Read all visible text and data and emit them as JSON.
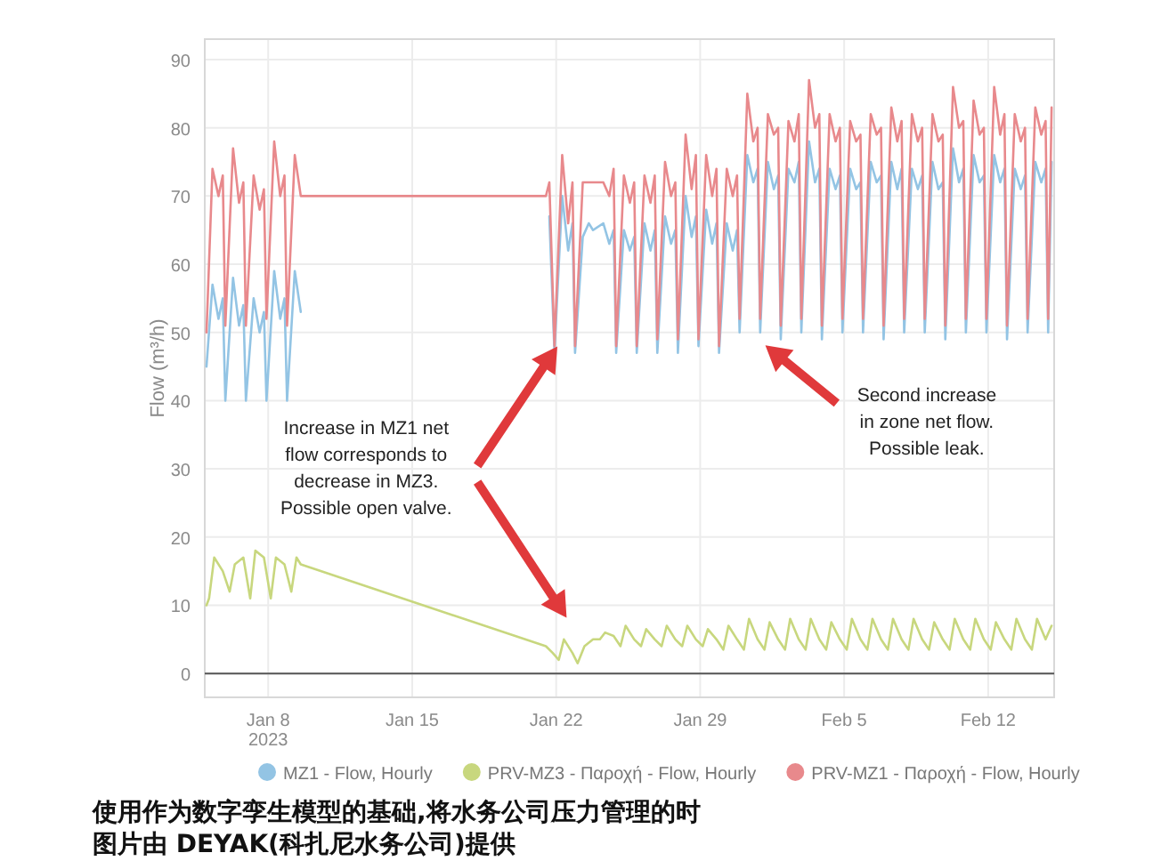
{
  "chart_data": {
    "type": "line",
    "ylabel": "Flow (m³/h)",
    "x": [
      "2023-01-05T00:00",
      "2023-01-05T07:00",
      "2023-01-05T14:00",
      "2023-01-05T19:00",
      "2023-01-05T22:00",
      "2023-01-06T07:00",
      "2023-01-06T14:00",
      "2023-01-06T19:00",
      "2023-01-06T22:00",
      "2023-01-07T07:00",
      "2023-01-07T14:00",
      "2023-01-07T19:00",
      "2023-01-07T22:00",
      "2023-01-08T07:00",
      "2023-01-08T14:00",
      "2023-01-08T19:00",
      "2023-01-08T22:00",
      "2023-01-09T07:00",
      "2023-01-09T14:00",
      "2023-01-21T12:00",
      "2023-01-21T16:00",
      "2023-01-21T22:00",
      "2023-01-22T07:00",
      "2023-01-22T14:00",
      "2023-01-22T19:00",
      "2023-01-22T22:00",
      "2023-01-23T07:00",
      "2023-01-23T14:00",
      "2023-01-23T19:00",
      "2023-01-24T07:00",
      "2023-01-24T14:00",
      "2023-01-24T19:00",
      "2023-01-24T22:00",
      "2023-01-25T07:00",
      "2023-01-25T14:00",
      "2023-01-25T19:00",
      "2023-01-25T22:00",
      "2023-01-26T07:00",
      "2023-01-26T14:00",
      "2023-01-26T19:00",
      "2023-01-26T22:00",
      "2023-01-27T07:00",
      "2023-01-27T14:00",
      "2023-01-27T19:00",
      "2023-01-27T22:00",
      "2023-01-28T07:00",
      "2023-01-28T14:00",
      "2023-01-28T19:00",
      "2023-01-28T22:00",
      "2023-01-29T07:00",
      "2023-01-29T14:00",
      "2023-01-29T19:00",
      "2023-01-29T22:00",
      "2023-01-30T07:00",
      "2023-01-30T14:00",
      "2023-01-30T19:00",
      "2023-01-30T22:00",
      "2023-01-31T07:00",
      "2023-01-31T14:00",
      "2023-01-31T19:00",
      "2023-01-31T22:00",
      "2023-02-01T07:00",
      "2023-02-01T14:00",
      "2023-02-01T19:00",
      "2023-02-01T22:00",
      "2023-02-02T07:00",
      "2023-02-02T14:00",
      "2023-02-02T19:00",
      "2023-02-02T22:00",
      "2023-02-03T07:00",
      "2023-02-03T14:00",
      "2023-02-03T19:00",
      "2023-02-03T22:00",
      "2023-02-04T07:00",
      "2023-02-04T14:00",
      "2023-02-04T19:00",
      "2023-02-04T22:00",
      "2023-02-05T07:00",
      "2023-02-05T14:00",
      "2023-02-05T19:00",
      "2023-02-05T22:00",
      "2023-02-06T07:00",
      "2023-02-06T14:00",
      "2023-02-06T19:00",
      "2023-02-06T22:00",
      "2023-02-07T07:00",
      "2023-02-07T14:00",
      "2023-02-07T19:00",
      "2023-02-07T22:00",
      "2023-02-08T07:00",
      "2023-02-08T14:00",
      "2023-02-08T19:00",
      "2023-02-08T22:00",
      "2023-02-09T07:00",
      "2023-02-09T14:00",
      "2023-02-09T19:00",
      "2023-02-09T22:00",
      "2023-02-10T07:00",
      "2023-02-10T14:00",
      "2023-02-10T19:00",
      "2023-02-10T22:00",
      "2023-02-11T07:00",
      "2023-02-11T14:00",
      "2023-02-11T19:00",
      "2023-02-11T22:00",
      "2023-02-12T07:00",
      "2023-02-12T14:00",
      "2023-02-12T19:00",
      "2023-02-12T22:00",
      "2023-02-13T07:00",
      "2023-02-13T14:00",
      "2023-02-13T19:00",
      "2023-02-13T22:00",
      "2023-02-14T07:00",
      "2023-02-14T14:00",
      "2023-02-14T19:00",
      "2023-02-14T22:00",
      "2023-02-15T02:00"
    ],
    "series": [
      {
        "name": "MZ1 - Flow, Hourly",
        "color": "#93c4e4",
        "values": [
          45,
          57,
          52,
          55,
          40,
          58,
          51,
          54,
          40,
          55,
          50,
          53,
          40,
          59,
          52,
          55,
          40,
          59,
          53,
          null,
          67,
          47,
          70,
          62,
          66,
          47,
          64,
          66,
          65,
          66,
          63,
          65,
          47,
          65,
          62,
          64,
          47,
          66,
          62,
          65,
          47,
          67,
          63,
          65,
          47,
          70,
          64,
          67,
          48,
          68,
          63,
          66,
          47,
          66,
          62,
          65,
          50,
          76,
          72,
          74,
          50,
          75,
          71,
          73,
          49,
          74,
          72,
          75,
          50,
          78,
          72,
          74,
          49,
          74,
          71,
          73,
          50,
          74,
          71,
          72,
          50,
          75,
          72,
          73,
          49,
          75,
          71,
          74,
          50,
          74,
          71,
          73,
          50,
          75,
          71,
          72,
          49,
          77,
          72,
          74,
          50,
          76,
          72,
          73,
          50,
          76,
          72,
          74,
          49,
          74,
          71,
          73,
          50,
          75,
          72,
          74,
          50,
          75
        ]
      },
      {
        "name": "PRV-MZ3 - Παροχή - Flow, Hourly",
        "color": "#c8d77e",
        "x": [
          "2023-01-05T00:00",
          "2023-01-05T03:00",
          "2023-01-05T09:00",
          "2023-01-05T19:00",
          "2023-01-06T03:00",
          "2023-01-06T09:00",
          "2023-01-06T19:00",
          "2023-01-07T03:00",
          "2023-01-07T09:00",
          "2023-01-07T19:00",
          "2023-01-08T03:00",
          "2023-01-08T09:00",
          "2023-01-08T19:00",
          "2023-01-09T03:00",
          "2023-01-09T09:00",
          "2023-01-09T14:00",
          "2023-01-21T12:00",
          "2023-01-21T20:00",
          "2023-01-22T03:00",
          "2023-01-22T09:00",
          "2023-01-22T19:00",
          "2023-01-23T01:00",
          "2023-01-23T09:00",
          "2023-01-23T19:00",
          "2023-01-24T03:00",
          "2023-01-24T09:00",
          "2023-01-24T19:00",
          "2023-01-25T03:00",
          "2023-01-25T09:00",
          "2023-01-25T19:00",
          "2023-01-26T03:00",
          "2023-01-26T09:00",
          "2023-01-26T19:00",
          "2023-01-27T03:00",
          "2023-01-27T09:00",
          "2023-01-27T19:00",
          "2023-01-28T03:00",
          "2023-01-28T09:00",
          "2023-01-28T19:00",
          "2023-01-29T03:00",
          "2023-01-29T09:00",
          "2023-01-29T19:00",
          "2023-01-30T03:00",
          "2023-01-30T09:00",
          "2023-01-30T19:00",
          "2023-01-31T03:00",
          "2023-01-31T09:00",
          "2023-01-31T19:00",
          "2023-02-01T03:00",
          "2023-02-01T09:00",
          "2023-02-01T19:00",
          "2023-02-02T03:00",
          "2023-02-02T09:00",
          "2023-02-02T19:00",
          "2023-02-03T03:00",
          "2023-02-03T09:00",
          "2023-02-03T19:00",
          "2023-02-04T03:00",
          "2023-02-04T09:00",
          "2023-02-04T19:00",
          "2023-02-05T03:00",
          "2023-02-05T09:00",
          "2023-02-05T19:00",
          "2023-02-06T03:00",
          "2023-02-06T09:00",
          "2023-02-06T19:00",
          "2023-02-07T03:00",
          "2023-02-07T09:00",
          "2023-02-07T19:00",
          "2023-02-08T03:00",
          "2023-02-08T09:00",
          "2023-02-08T19:00",
          "2023-02-09T03:00",
          "2023-02-09T09:00",
          "2023-02-09T19:00",
          "2023-02-10T03:00",
          "2023-02-10T09:00",
          "2023-02-10T19:00",
          "2023-02-11T03:00",
          "2023-02-11T09:00",
          "2023-02-11T19:00",
          "2023-02-12T03:00",
          "2023-02-12T09:00",
          "2023-02-12T19:00",
          "2023-02-13T03:00",
          "2023-02-13T09:00",
          "2023-02-13T19:00",
          "2023-02-14T03:00",
          "2023-02-14T09:00",
          "2023-02-14T19:00",
          "2023-02-15T02:00"
        ],
        "values": [
          10,
          11,
          17,
          15,
          12,
          16,
          17,
          11,
          18,
          17,
          11,
          17,
          16,
          12,
          17,
          16,
          4,
          3,
          2,
          5,
          3,
          1.5,
          4,
          5,
          5,
          6,
          5.5,
          4,
          7,
          5,
          4,
          6.5,
          5,
          4,
          7,
          5,
          4,
          7,
          5,
          4,
          6.5,
          5,
          3.5,
          7,
          5,
          3.5,
          8,
          5,
          3.5,
          7.5,
          5,
          3.5,
          8,
          5,
          3.5,
          8,
          5,
          3.5,
          7.5,
          5,
          3.5,
          8,
          5,
          3.5,
          8,
          5,
          3.5,
          8,
          5,
          3.5,
          8,
          5,
          3.5,
          7.5,
          5,
          3.5,
          8,
          5,
          3.5,
          8,
          5,
          3.5,
          7.5,
          5,
          3.5,
          8,
          5,
          3.5,
          8,
          5,
          7
        ]
      },
      {
        "name": "PRV-MZ1 - Παροχή - Flow, Hourly",
        "color": "#e8898c",
        "values": [
          50,
          74,
          70,
          73,
          51,
          77,
          69,
          72,
          51,
          73,
          68,
          71,
          52,
          78,
          70,
          73,
          51,
          76,
          70,
          70,
          72,
          48,
          76,
          66,
          72,
          48,
          72,
          72,
          72,
          72,
          70,
          74,
          48,
          73,
          69,
          72,
          48,
          73,
          69,
          73,
          49,
          75,
          70,
          72,
          49,
          79,
          71,
          76,
          49,
          76,
          70,
          74,
          48,
          74,
          70,
          73,
          52,
          85,
          78,
          80,
          52,
          82,
          79,
          80,
          51,
          81,
          78,
          82,
          52,
          87,
          80,
          82,
          51,
          82,
          78,
          80,
          52,
          81,
          78,
          79,
          52,
          82,
          79,
          80,
          51,
          83,
          78,
          81,
          52,
          82,
          78,
          80,
          52,
          82,
          78,
          79,
          51,
          86,
          80,
          81,
          52,
          84,
          79,
          80,
          52,
          86,
          79,
          82,
          51,
          82,
          78,
          80,
          52,
          83,
          79,
          81,
          52,
          83
        ]
      }
    ],
    "xlim": [
      "2023-01-04T22:00",
      "2023-02-15T05:00"
    ],
    "xticks": [
      {
        "value": "2023-01-08",
        "label": "Jan 8\n2023"
      },
      {
        "value": "2023-01-15",
        "label": "Jan 15"
      },
      {
        "value": "2023-01-22",
        "label": "Jan 22"
      },
      {
        "value": "2023-01-29",
        "label": "Jan 29"
      },
      {
        "value": "2023-02-05",
        "label": "Feb 5"
      },
      {
        "value": "2023-02-12",
        "label": "Feb 12"
      }
    ],
    "ylim": [
      -3.5,
      93
    ],
    "yticks": [
      0,
      10,
      20,
      30,
      40,
      50,
      60,
      70,
      80,
      90
    ],
    "ref_lines": [
      {
        "axis": "y",
        "value": 0,
        "color": "#555555"
      }
    ],
    "grid": true,
    "legend": "bottom",
    "marker": "none",
    "line_style": "solid",
    "annotations": [
      "Increase in MZ1 net\nflow corresponds to\ndecrease in MZ3.\nPossible open valve.",
      "Second increase\nin zone net flow.\nPossible leak.",
      "使用作为数字孪生模型的基础,将水务公司压力管理的时",
      "图片由 DEYAK(科扎尼水务公司)提供"
    ]
  }
}
